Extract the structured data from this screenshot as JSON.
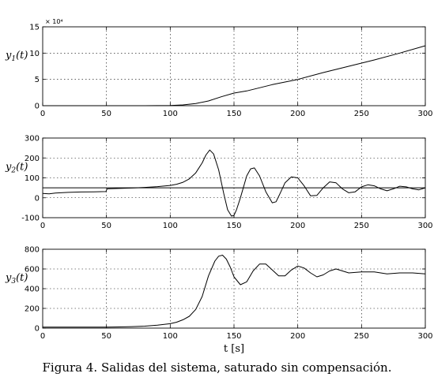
{
  "caption": "Figura 4. Salidas del sistema, saturado sin compensación.",
  "x_label": "t [s]",
  "chart_data": [
    {
      "type": "line",
      "ylabel": "y1(t)",
      "ylabel_base": "y",
      "ylabel_sub": "1",
      "ylabel_arg": "(t)",
      "exponent_label": "× 10⁴",
      "xlim": [
        0,
        300
      ],
      "ylim": [
        0,
        15
      ],
      "xticks": [
        0,
        50,
        100,
        150,
        200,
        250,
        300
      ],
      "yticks": [
        0,
        5,
        10,
        15
      ],
      "grid": true,
      "series": [
        {
          "x": [
            0,
            20,
            40,
            60,
            80,
            100,
            110,
            120,
            130,
            140,
            150,
            160,
            170,
            180,
            200,
            220,
            240,
            260,
            280,
            300
          ],
          "y": [
            0,
            0,
            0,
            0,
            0,
            0.05,
            0.15,
            0.4,
            0.9,
            1.7,
            2.4,
            2.8,
            3.4,
            4.0,
            5.0,
            6.3,
            7.5,
            8.7,
            10.0,
            11.4
          ]
        }
      ]
    },
    {
      "type": "line",
      "ylabel": "y2(t)",
      "ylabel_base": "y",
      "ylabel_sub": "2",
      "ylabel_arg": "(t)",
      "xlim": [
        0,
        300
      ],
      "ylim": [
        -100,
        300
      ],
      "xticks": [
        0,
        50,
        100,
        150,
        200,
        250,
        300
      ],
      "yticks": [
        -100,
        0,
        100,
        200,
        300
      ],
      "grid": true,
      "series": [
        {
          "x": [
            0,
            5,
            10,
            20,
            30,
            40,
            49.5,
            50.5,
            60,
            70,
            80,
            90,
            100,
            105,
            110,
            115,
            120,
            125,
            128,
            131,
            134,
            138,
            142,
            145,
            148,
            150,
            152,
            155,
            160,
            163,
            166,
            170,
            175,
            180,
            183,
            186,
            190,
            195,
            200,
            205,
            210,
            215,
            220,
            225,
            230,
            235,
            240,
            245,
            250,
            255,
            260,
            265,
            270,
            275,
            280,
            285,
            290,
            295,
            300
          ],
          "y": [
            22,
            20,
            24,
            27,
            29,
            30,
            31,
            45,
            47,
            49,
            52,
            56,
            62,
            68,
            78,
            95,
            125,
            175,
            215,
            240,
            220,
            140,
            20,
            -60,
            -92,
            -88,
            -60,
            0,
            110,
            145,
            150,
            110,
            30,
            -25,
            -20,
            20,
            75,
            105,
            100,
            60,
            10,
            12,
            50,
            80,
            75,
            45,
            25,
            30,
            55,
            65,
            60,
            45,
            35,
            45,
            58,
            55,
            45,
            40,
            50
          ]
        },
        {
          "x": [
            0,
            300
          ],
          "y": [
            50,
            50
          ]
        }
      ]
    },
    {
      "type": "line",
      "ylabel": "y3(t)",
      "ylabel_base": "y",
      "ylabel_sub": "3",
      "ylabel_arg": "(t)",
      "xlim": [
        0,
        300
      ],
      "ylim": [
        0,
        800
      ],
      "xticks": [
        0,
        50,
        100,
        150,
        200,
        250,
        300
      ],
      "yticks": [
        0,
        200,
        400,
        600,
        800
      ],
      "grid": true,
      "series": [
        {
          "x": [
            0,
            20,
            40,
            50,
            60,
            70,
            80,
            90,
            100,
            105,
            110,
            115,
            120,
            125,
            130,
            135,
            138,
            141,
            144,
            147,
            150,
            155,
            160,
            165,
            170,
            175,
            180,
            185,
            190,
            195,
            200,
            205,
            210,
            215,
            220,
            225,
            230,
            240,
            250,
            260,
            270,
            280,
            290,
            300
          ],
          "y": [
            10,
            10,
            10,
            10,
            12,
            15,
            20,
            30,
            45,
            60,
            85,
            120,
            190,
            320,
            530,
            680,
            730,
            740,
            700,
            620,
            520,
            440,
            470,
            580,
            650,
            650,
            590,
            530,
            530,
            590,
            630,
            610,
            560,
            520,
            540,
            580,
            600,
            560,
            570,
            570,
            550,
            560,
            560,
            550
          ]
        }
      ]
    }
  ]
}
